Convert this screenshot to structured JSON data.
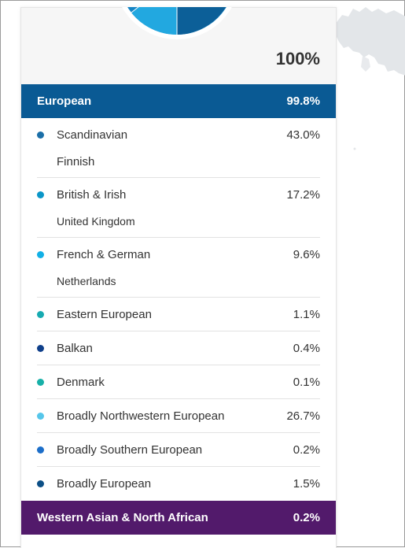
{
  "total_percent": "100%",
  "regions": [
    {
      "name": "European",
      "percent": "99.8%",
      "color": "#0a5a94",
      "items": [
        {
          "name": "Scandinavian",
          "percent": "43.0%",
          "sub": "Finnish",
          "dot": "#1b6fa8"
        },
        {
          "name": "British & Irish",
          "percent": "17.2%",
          "sub": "United Kingdom",
          "dot": "#0b96c8"
        },
        {
          "name": "French & German",
          "percent": "9.6%",
          "sub": "Netherlands",
          "dot": "#12b0e6"
        },
        {
          "name": "Eastern European",
          "percent": "1.1%",
          "dot": "#16aab1"
        },
        {
          "name": "Balkan",
          "percent": "0.4%",
          "dot": "#0f3f8a"
        },
        {
          "name": "Denmark",
          "percent": "0.1%",
          "dot": "#17b0a8"
        },
        {
          "name": "Broadly Northwestern European",
          "percent": "26.7%",
          "dot": "#56c6ea"
        },
        {
          "name": "Broadly Southern European",
          "percent": "0.2%",
          "dot": "#1c6ec9"
        },
        {
          "name": "Broadly European",
          "percent": "1.5%",
          "dot": "#0c4f86"
        }
      ]
    },
    {
      "name": "Western Asian & North African",
      "percent": "0.2%",
      "color": "#521a6b"
    }
  ]
}
